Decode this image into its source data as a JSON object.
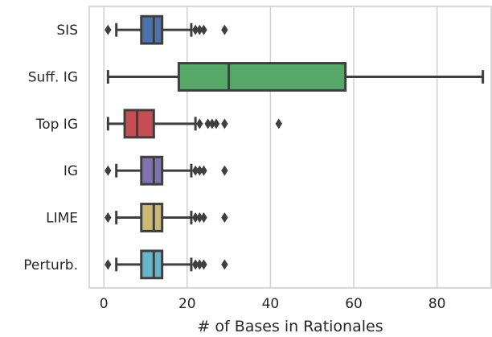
{
  "chart_data": {
    "type": "boxplot",
    "orientation": "horizontal",
    "title": "",
    "xlabel": "# of Bases in Rationales",
    "ylabel": "",
    "xlim": [
      -3.5,
      93
    ],
    "xticks": [
      0,
      20,
      40,
      60,
      80
    ],
    "grid": "vertical",
    "legend": "none",
    "categories": [
      "SIS",
      "Suff. IG",
      "Top IG",
      "IG",
      "LIME",
      "Perturb."
    ],
    "colors": [
      "#4c72b0",
      "#55a868",
      "#c44e52",
      "#8172b2",
      "#ccb974",
      "#64b5cd"
    ],
    "boxes": [
      {
        "name": "SIS",
        "whisker_low": 3,
        "q1": 9,
        "median": 12,
        "q3": 14,
        "whisker_high": 21,
        "outliers": [
          1,
          22,
          23,
          24,
          29
        ]
      },
      {
        "name": "Suff. IG",
        "whisker_low": 1,
        "q1": 18,
        "median": 30,
        "q3": 58,
        "whisker_high": 91,
        "outliers": []
      },
      {
        "name": "Top IG",
        "whisker_low": 1,
        "q1": 5,
        "median": 8,
        "q3": 12,
        "whisker_high": 22,
        "outliers": [
          23,
          25,
          26,
          27,
          29,
          42
        ]
      },
      {
        "name": "IG",
        "whisker_low": 3,
        "q1": 9,
        "median": 12,
        "q3": 14,
        "whisker_high": 21,
        "outliers": [
          1,
          22,
          23,
          24,
          29
        ]
      },
      {
        "name": "LIME",
        "whisker_low": 3,
        "q1": 9,
        "median": 12,
        "q3": 14,
        "whisker_high": 21,
        "outliers": [
          1,
          22,
          23,
          24,
          29
        ]
      },
      {
        "name": "Perturb.",
        "whisker_low": 3,
        "q1": 9,
        "median": 12,
        "q3": 14,
        "whisker_high": 21,
        "outliers": [
          1,
          22,
          23,
          24,
          29
        ]
      }
    ]
  }
}
